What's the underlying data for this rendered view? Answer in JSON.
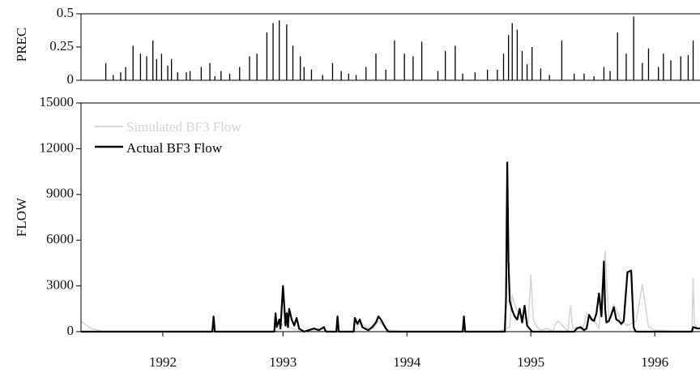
{
  "chart_data": [
    {
      "type": "bar",
      "ylabel": "PREC",
      "ylim": [
        0,
        0.5
      ],
      "yticks": [
        {
          "value": 0,
          "label": "0"
        },
        {
          "value": 0.25,
          "label": "0.25"
        },
        {
          "value": 0.5,
          "label": "0.5"
        }
      ],
      "xlim": [
        1991.42,
        1996.52
      ],
      "series": [
        {
          "color": "#000000",
          "x": [
            1991.62,
            1991.68,
            1991.74,
            1991.78,
            1991.84,
            1991.9,
            1991.95,
            1992.0,
            1992.03,
            1992.07,
            1992.12,
            1992.15,
            1992.2,
            1992.27,
            1992.3,
            1992.39,
            1992.46,
            1992.5,
            1992.55,
            1992.62,
            1992.7,
            1992.78,
            1992.84,
            1992.92,
            1992.97,
            1993.02,
            1993.08,
            1993.13,
            1993.19,
            1993.22,
            1993.28,
            1993.37,
            1993.45,
            1993.52,
            1993.58,
            1993.64,
            1993.72,
            1993.8,
            1993.88,
            1993.95,
            1994.03,
            1994.1,
            1994.17,
            1994.3,
            1994.36,
            1994.44,
            1994.5,
            1994.6,
            1994.7,
            1994.78,
            1994.83,
            1994.87,
            1994.9,
            1994.94,
            1994.98,
            1995.02,
            1995.06,
            1995.13,
            1995.2,
            1995.3,
            1995.4,
            1995.48,
            1995.56,
            1995.64,
            1995.69,
            1995.75,
            1995.82,
            1995.88,
            1995.95,
            1996.0,
            1996.08,
            1996.12,
            1996.18,
            1996.26,
            1996.32,
            1996.36,
            1996.42,
            1996.48
          ],
          "values": [
            0.13,
            0.04,
            0.06,
            0.1,
            0.26,
            0.2,
            0.18,
            0.3,
            0.16,
            0.2,
            0.11,
            0.16,
            0.06,
            0.06,
            0.07,
            0.1,
            0.13,
            0.03,
            0.07,
            0.05,
            0.1,
            0.18,
            0.2,
            0.36,
            0.43,
            0.45,
            0.42,
            0.26,
            0.18,
            0.1,
            0.08,
            0.04,
            0.13,
            0.07,
            0.05,
            0.04,
            0.1,
            0.2,
            0.08,
            0.3,
            0.2,
            0.18,
            0.29,
            0.07,
            0.22,
            0.26,
            0.05,
            0.06,
            0.08,
            0.08,
            0.2,
            0.34,
            0.43,
            0.38,
            0.22,
            0.12,
            0.25,
            0.09,
            0.04,
            0.3,
            0.05,
            0.05,
            0.03,
            0.1,
            0.07,
            0.36,
            0.2,
            0.48,
            0.13,
            0.24,
            0.1,
            0.2,
            0.15,
            0.18,
            0.19,
            0.3,
            0.22,
            0.09
          ]
        }
      ]
    },
    {
      "type": "line",
      "xlabel": "",
      "ylabel": "FLOW",
      "ylim": [
        0,
        15000
      ],
      "yticks": [
        {
          "value": 0,
          "label": "0"
        },
        {
          "value": 3000,
          "label": "3000"
        },
        {
          "value": 6000,
          "label": "6000"
        },
        {
          "value": 9000,
          "label": "9000"
        },
        {
          "value": 12000,
          "label": "12000"
        },
        {
          "value": 15000,
          "label": "15000"
        }
      ],
      "xlim": [
        1991.42,
        1996.52
      ],
      "xticks": [
        {
          "value": 1992.08,
          "label": "1992"
        },
        {
          "value": 1993.05,
          "label": "1993"
        },
        {
          "value": 1994.05,
          "label": "1994"
        },
        {
          "value": 1995.05,
          "label": "1995"
        },
        {
          "value": 1996.05,
          "label": "1996"
        }
      ],
      "legend": "top-left",
      "series": [
        {
          "name": "Simulated BF3 Flow",
          "color": "#d4d4d4",
          "x": [
            1991.42,
            1991.45,
            1991.5,
            1991.6,
            1992.5,
            1993.0,
            1993.05,
            1993.08,
            1993.1,
            1993.13,
            1993.2,
            1993.3,
            1993.42,
            1993.62,
            1993.68,
            1993.7,
            1993.72,
            1993.78,
            1993.82,
            1993.86,
            1993.9,
            1994.0,
            1994.8,
            1994.88,
            1994.9,
            1994.93,
            1994.96,
            1995.0,
            1995.03,
            1995.05,
            1995.07,
            1995.1,
            1995.13,
            1995.18,
            1995.23,
            1995.25,
            1995.27,
            1995.35,
            1995.37,
            1995.39,
            1995.42,
            1995.47,
            1995.5,
            1995.55,
            1995.6,
            1995.65,
            1995.68,
            1995.72,
            1995.78,
            1995.83,
            1995.9,
            1995.95,
            1996.0,
            1996.05,
            1996.2,
            1996.35,
            1996.36,
            1996.37,
            1996.4,
            1996.52
          ],
          "values": [
            700,
            500,
            200,
            20,
            20,
            20,
            500,
            900,
            300,
            200,
            50,
            20,
            20,
            20,
            600,
            400,
            300,
            200,
            700,
            400,
            100,
            20,
            20,
            300,
            2400,
            1500,
            1200,
            900,
            600,
            3700,
            800,
            300,
            100,
            200,
            20,
            500,
            700,
            20,
            1700,
            200,
            300,
            100,
            1200,
            900,
            200,
            5300,
            800,
            1800,
            700,
            400,
            700,
            3100,
            300,
            100,
            20,
            20,
            3500,
            500,
            200,
            100
          ]
        },
        {
          "name": "Actual BF3 Flow",
          "color": "#000000",
          "x": [
            1991.42,
            1992.48,
            1992.49,
            1992.5,
            1992.95,
            1992.98,
            1992.99,
            1993.0,
            1993.02,
            1993.03,
            1993.05,
            1993.07,
            1993.08,
            1993.09,
            1993.1,
            1993.12,
            1993.14,
            1993.16,
            1993.18,
            1993.22,
            1993.26,
            1993.3,
            1993.34,
            1993.38,
            1993.39,
            1993.4,
            1993.48,
            1993.49,
            1993.5,
            1993.62,
            1993.63,
            1993.65,
            1993.67,
            1993.69,
            1993.71,
            1993.74,
            1993.77,
            1993.8,
            1993.82,
            1993.84,
            1993.86,
            1993.88,
            1993.9,
            1994.5,
            1994.51,
            1994.52,
            1994.84,
            1994.85,
            1994.86,
            1994.87,
            1994.88,
            1994.9,
            1994.92,
            1994.94,
            1994.96,
            1994.98,
            1995.0,
            1995.02,
            1995.03,
            1995.04,
            1995.05,
            1995.06,
            1995.08,
            1995.1,
            1995.3,
            1995.4,
            1995.42,
            1995.45,
            1995.48,
            1995.5,
            1995.52,
            1995.54,
            1995.56,
            1995.58,
            1995.6,
            1995.62,
            1995.64,
            1995.65,
            1995.66,
            1995.68,
            1995.7,
            1995.72,
            1995.74,
            1995.76,
            1995.78,
            1995.8,
            1995.83,
            1995.86,
            1995.88,
            1995.89,
            1995.9,
            1995.92,
            1995.95,
            1996.3,
            1996.35,
            1996.36,
            1996.4,
            1996.45,
            1996.52
          ],
          "values": [
            0,
            0,
            1000,
            0,
            0,
            0,
            1200,
            300,
            800,
            200,
            3000,
            400,
            1200,
            300,
            1500,
            800,
            400,
            900,
            200,
            0,
            100,
            200,
            100,
            300,
            100,
            0,
            0,
            1000,
            0,
            0,
            900,
            500,
            800,
            300,
            200,
            100,
            300,
            600,
            1000,
            800,
            500,
            200,
            0,
            0,
            1000,
            0,
            0,
            2200,
            11100,
            4600,
            2000,
            1400,
            1000,
            800,
            1500,
            600,
            1700,
            400,
            300,
            200,
            100,
            0,
            0,
            0,
            0,
            0,
            200,
            300,
            100,
            200,
            1100,
            800,
            700,
            1200,
            2500,
            1000,
            4600,
            1500,
            600,
            700,
            1100,
            1600,
            800,
            700,
            500,
            700,
            3900,
            4000,
            300,
            100,
            0,
            0,
            0,
            0,
            0,
            300,
            200,
            250,
            100
          ]
        }
      ]
    }
  ]
}
